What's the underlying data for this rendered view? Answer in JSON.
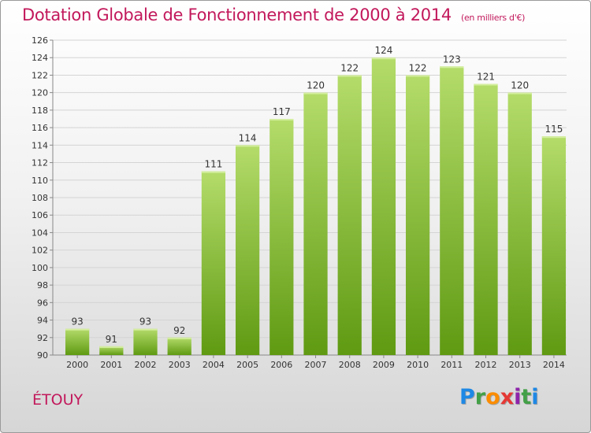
{
  "header": {
    "title": "Dotation Globale de Fonctionnement de 2000 à 2014",
    "unit": "(en milliers d'€)"
  },
  "footer": {
    "place": "ÉTOUY",
    "logo_letters": [
      "P",
      "r",
      "o",
      "x",
      "i",
      "t",
      "i"
    ],
    "logo_colors": [
      "#1e88e5",
      "#43a047",
      "#fb8c00",
      "#e53935",
      "#8e24aa",
      "#43a047",
      "#1e88e5"
    ]
  },
  "colors": {
    "title": "#c2185b",
    "bar_light": "#b4dc6a",
    "bar_dark": "#5f9a12"
  },
  "chart_data": {
    "type": "bar",
    "categories": [
      "2000",
      "2001",
      "2002",
      "2003",
      "2004",
      "2005",
      "2006",
      "2007",
      "2008",
      "2009",
      "2010",
      "2011",
      "2012",
      "2013",
      "2014"
    ],
    "values": [
      93,
      91,
      93,
      92,
      111,
      114,
      117,
      120,
      122,
      124,
      122,
      123,
      121,
      120,
      115
    ],
    "ylim": [
      90,
      126
    ],
    "yticks": [
      90,
      92,
      94,
      96,
      98,
      100,
      102,
      104,
      106,
      108,
      110,
      112,
      114,
      116,
      118,
      120,
      122,
      124,
      126
    ],
    "grid": true
  }
}
